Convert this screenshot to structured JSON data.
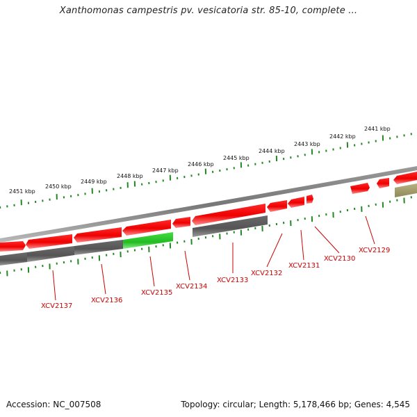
{
  "title": "Xanthomonas campestris pv. vesicatoria str. 85-10, complete ...",
  "footer": {
    "accession": "Accession: NC_007508",
    "summary": "Topology: circular; Length: 5,178,466 bp; Genes: 4,545"
  },
  "colors": {
    "forward_gene": "#ee0000",
    "reverse_gene": "#5a5a5a",
    "highlight_gene": "#33cc33",
    "other_feature": "#a8a070",
    "backbone": "#808080",
    "tick": "#228822",
    "label": "#cc0000"
  },
  "kbp_ticks": [
    "2451 kbp",
    "2450 kbp",
    "2449 kbp",
    "2448 kbp",
    "2447 kbp",
    "2446 kbp",
    "2445 kbp",
    "2444 kbp",
    "2443 kbp",
    "2442 kbp",
    "2441 kbp"
  ],
  "gene_labels": [
    "XCV2137",
    "XCV2136",
    "XCV2135",
    "XCV2134",
    "XCV2133",
    "XCV2132",
    "XCV2131",
    "XCV2130",
    "XCV2129"
  ]
}
